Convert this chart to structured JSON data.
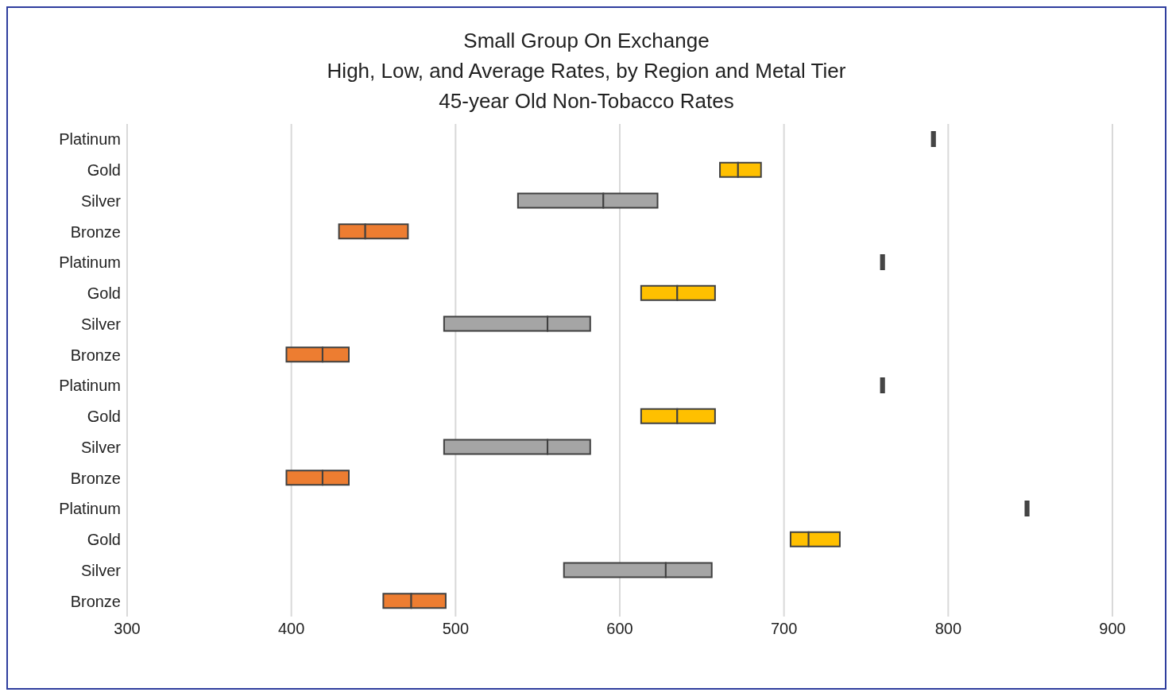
{
  "chart_data": {
    "type": "bar",
    "orientation": "horizontal",
    "title": "Small Group On Exchange",
    "subtitle": "High, Low, and Average Rates, by Region and Metal Tier\n45-year Old Non-Tobacco Rates",
    "categories": [
      "Platinum",
      "Gold",
      "Silver",
      "Bronze",
      "Platinum",
      "Gold",
      "Silver",
      "Bronze",
      "Platinum",
      "Gold",
      "Silver",
      "Bronze",
      "Platinum",
      "Gold",
      "Silver",
      "Bronze"
    ],
    "series": [
      {
        "base": [
          790,
          661,
          538,
          429,
          759,
          613,
          493,
          397,
          759,
          613,
          493,
          397,
          847,
          704,
          566,
          456
        ],
        "values": [
          1,
          11,
          52,
          16,
          1,
          22,
          63,
          22,
          1,
          22,
          63,
          22,
          1,
          11,
          62,
          17
        ],
        "colors": [
          "#ffffff",
          "#ffc000",
          "#a5a5a5",
          "#ed7d31",
          "#ffffff",
          "#ffc000",
          "#a5a5a5",
          "#ed7d31",
          "#ffffff",
          "#ffc000",
          "#a5a5a5",
          "#ed7d31",
          "#ffffff",
          "#ffc000",
          "#a5a5a5",
          "#ed7d31"
        ]
      },
      {
        "base": [
          791,
          672,
          590,
          445,
          760,
          635,
          556,
          419,
          760,
          635,
          556,
          419,
          848,
          715,
          628,
          473
        ],
        "values": [
          1,
          14,
          33,
          26,
          1,
          23,
          26,
          16,
          1,
          23,
          26,
          16,
          1,
          19,
          28,
          21
        ],
        "colors": [
          "#ffffff",
          "#ffc000",
          "#a5a5a5",
          "#ed7d31",
          "#ffffff",
          "#ffc000",
          "#a5a5a5",
          "#ed7d31",
          "#ffffff",
          "#ffc000",
          "#a5a5a5",
          "#ed7d31",
          "#ffffff",
          "#ffc000",
          "#a5a5a5",
          "#ed7d31"
        ]
      }
    ],
    "xlim": [
      300,
      900
    ],
    "xticks": [
      300,
      400,
      500,
      600,
      700,
      800,
      900
    ],
    "grid": "x",
    "legend": false
  }
}
